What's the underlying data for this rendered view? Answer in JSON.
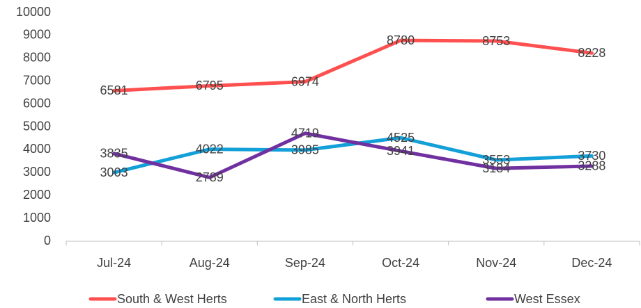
{
  "chart_data": {
    "type": "line",
    "categories": [
      "Jul-24",
      "Aug-24",
      "Sep-24",
      "Oct-24",
      "Nov-24",
      "Dec-24"
    ],
    "series": [
      {
        "name": "South & West Herts",
        "color": "#ff5050",
        "values": [
          6581,
          6795,
          6974,
          8780,
          8753,
          8228
        ]
      },
      {
        "name": "East & North Herts",
        "color": "#13a0d8",
        "values": [
          3003,
          4022,
          3985,
          4525,
          3553,
          3730
        ]
      },
      {
        "name": "West Essex",
        "color": "#7030a0",
        "values": [
          3835,
          2789,
          4719,
          3941,
          3184,
          3288
        ]
      }
    ],
    "ylim": [
      0,
      10000
    ],
    "yticks": [
      0,
      1000,
      2000,
      3000,
      4000,
      5000,
      6000,
      7000,
      8000,
      9000,
      10000
    ],
    "legend": "bottom"
  }
}
